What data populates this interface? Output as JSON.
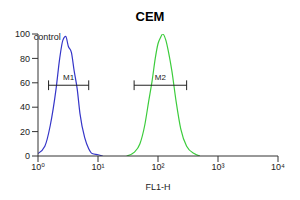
{
  "chart_data": {
    "type": "line",
    "title": "CEM",
    "x_label": "FL1-H",
    "log": "x",
    "xlim": [
      1,
      10000
    ],
    "xticks": [
      {
        "value": 1,
        "label": "10⁰"
      },
      {
        "value": 10,
        "label": "10¹"
      },
      {
        "value": 100,
        "label": "10²"
      },
      {
        "value": 1000,
        "label": "10³"
      },
      {
        "value": 10000,
        "label": "10⁴"
      }
    ],
    "ylim": [
      0,
      100
    ],
    "yticks": [
      0,
      20,
      40,
      60,
      80,
      100
    ],
    "series": [
      {
        "name": "control",
        "color": "#3535c8",
        "x": [
          1,
          1.3,
          1.6,
          2,
          2.3,
          2.6,
          2.9,
          3.2,
          3.6,
          4,
          4.5,
          5,
          6,
          7,
          8,
          10,
          12
        ],
        "values": [
          2,
          8,
          25,
          55,
          80,
          95,
          98,
          90,
          85,
          70,
          55,
          35,
          15,
          6,
          2,
          1,
          0
        ]
      },
      {
        "color": "#3ccc3c",
        "x": [
          30,
          40,
          50,
          60,
          70,
          80,
          90,
          100,
          110,
          120,
          135,
          150,
          170,
          200,
          240,
          300,
          400,
          500
        ],
        "values": [
          0,
          3,
          10,
          25,
          45,
          62,
          80,
          92,
          97,
          100,
          95,
          85,
          70,
          45,
          22,
          8,
          2,
          0
        ]
      }
    ],
    "gates": [
      {
        "label": "M1",
        "x": [
          1.5,
          7
        ],
        "y": 58
      },
      {
        "label": "M2",
        "x": [
          40,
          300
        ],
        "y": 58
      }
    ]
  }
}
